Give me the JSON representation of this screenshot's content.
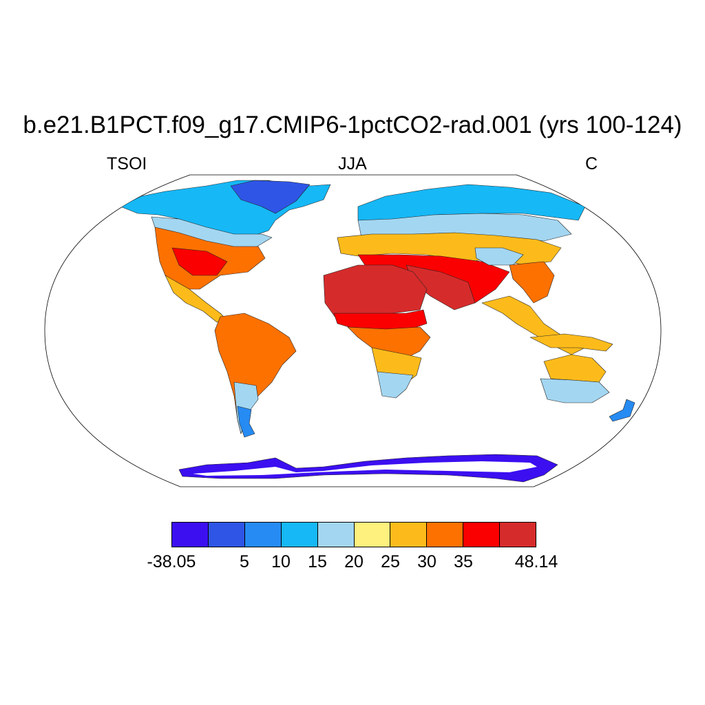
{
  "title": "b.e21.B1PCT.f09_g17.CMIP6-1pctCO2-rad.001 (yrs 100-124)",
  "variable": "TSOI",
  "season": "JJA",
  "units": "C",
  "colorbar": {
    "colors": [
      "#3b0ff0",
      "#2f55e6",
      "#268bf3",
      "#16b8f6",
      "#a3d6f1",
      "#fef17e",
      "#fdbb1b",
      "#fd7100",
      "#fb0000",
      "#d62b2b"
    ],
    "labels": [
      {
        "text": "-38.05",
        "boundary": 0
      },
      {
        "text": "5",
        "boundary": 2
      },
      {
        "text": "10",
        "boundary": 3
      },
      {
        "text": "15",
        "boundary": 4
      },
      {
        "text": "20",
        "boundary": 5
      },
      {
        "text": "25",
        "boundary": 6
      },
      {
        "text": "30",
        "boundary": 7
      },
      {
        "text": "35",
        "boundary": 8
      },
      {
        "text": "48.14",
        "boundary": 10
      }
    ]
  }
}
